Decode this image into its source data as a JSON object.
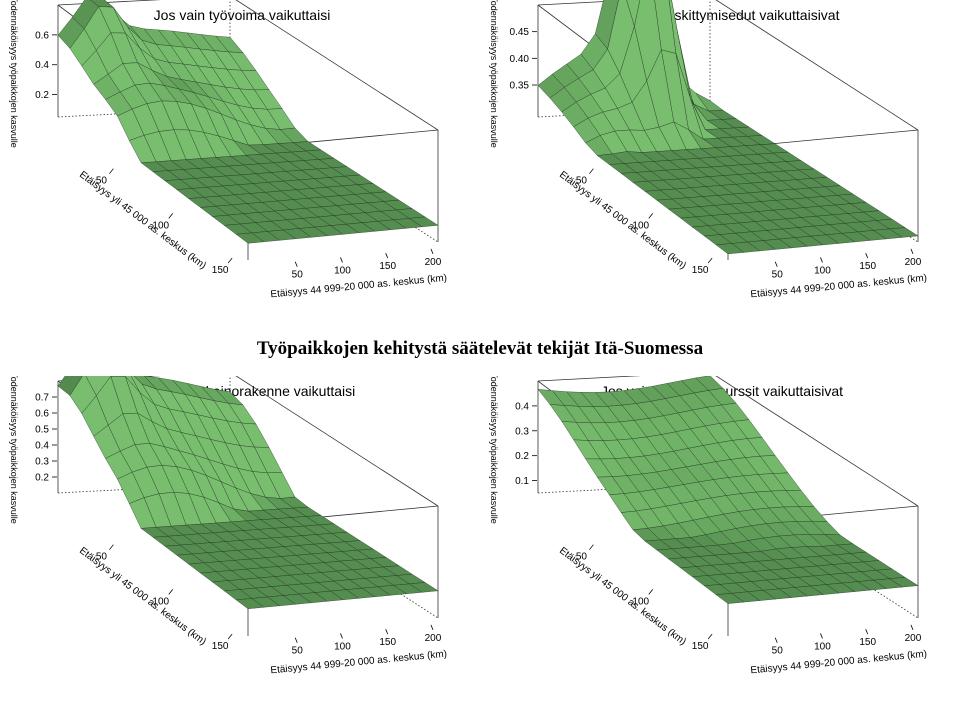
{
  "main_title": "Työpaikkojen kehitystä säätelevät tekijät Itä-Suomessa",
  "chart_data": [
    {
      "type": "surface",
      "title": "Jos vain työvoima vaikuttaisi",
      "zlabel": "Todennäköisyys työpaikkojen kasvulle",
      "xlabel": "Etäisyys yli 45 000 as. keskus (km)",
      "ylabel": "Etäisyys 44 999-20 000 as. keskus (km)",
      "xticks": [
        50,
        100,
        150
      ],
      "yticks": [
        50,
        100,
        150,
        200
      ],
      "zticks": [
        "0.2",
        "0.4",
        "0.6"
      ],
      "xlim": [
        0,
        160
      ],
      "ylim": [
        0,
        210
      ],
      "zlim": [
        0.05,
        0.8
      ],
      "shape": {
        "base": 0.45,
        "decay": 0.75,
        "floor": 0.18,
        "bump": 0.12,
        "ridge": 0.18,
        "ridgeX": 0.32,
        "side": 0.1,
        "peak": 0.1,
        "peakY": 0.2
      }
    },
    {
      "type": "surface",
      "title": "Jos vain keskittymisedut vaikuttaisivat",
      "zlabel": "Todennäköisyys työpaikkojen kasvulle",
      "xlabel": "Etäisyys yli 45 000 as. keskus (km)",
      "ylabel": "Etäisyys 44 999-20 000 as. keskus (km)",
      "xticks": [
        50,
        100,
        150
      ],
      "yticks": [
        50,
        100,
        150,
        200
      ],
      "zticks": [
        "0.35",
        "0.40",
        "0.45"
      ],
      "xlim": [
        0,
        160
      ],
      "ylim": [
        0,
        210
      ],
      "zlim": [
        0.29,
        0.5
      ],
      "shape": {
        "base": 0.34,
        "decay": 0.3,
        "floor": 0.335,
        "bump": 0.01,
        "ridge": 0.0,
        "ridgeX": 0.3,
        "side": 0.12,
        "peak": 0.13,
        "peakY": 0.55
      }
    },
    {
      "type": "surface",
      "title": "Jos vain elinkeinorakenne vaikuttaisi",
      "zlabel": "Todennäköisyys työpaikkojen kasvulle",
      "xlabel": "Etäisyys yli 45 000 as. keskus (km)",
      "ylabel": "Etäisyys 44 999-20 000 as. keskus (km)",
      "xticks": [
        50,
        100,
        150
      ],
      "yticks": [
        50,
        100,
        150,
        200
      ],
      "zticks": [
        "0.2",
        "0.3",
        "0.4",
        "0.5",
        "0.6",
        "0.7"
      ],
      "xlim": [
        0,
        160
      ],
      "ylim": [
        0,
        210
      ],
      "zlim": [
        0.1,
        0.8
      ],
      "shape": {
        "base": 0.5,
        "decay": 0.5,
        "floor": 0.3,
        "bump": 0.25,
        "ridge": 0.15,
        "ridgeX": 0.35,
        "side": 0.15,
        "peak": 0.1,
        "peakY": 0.2
      }
    },
    {
      "type": "surface",
      "title": "Jos vain luonnonresurssit vaikuttaisivat",
      "zlabel": "Todennäköisyys työpaikkojen kasvulle",
      "xlabel": "Etäisyys yli 45 000 as. keskus (km)",
      "ylabel": "Etäisyys 44 999-20 000 as. keskus (km)",
      "xticks": [
        50,
        100,
        150
      ],
      "yticks": [
        50,
        100,
        150,
        200
      ],
      "zticks": [
        "0.1",
        "0.2",
        "0.3",
        "0.4"
      ],
      "xlim": [
        0,
        160
      ],
      "ylim": [
        0,
        210
      ],
      "zlim": [
        0.05,
        0.5
      ],
      "shape": {
        "base": 0.42,
        "decay": 0.35,
        "floor": 0.2,
        "bump": 0.05,
        "ridge": 0.02,
        "ridgeX": 0.4,
        "side": -0.05,
        "peak": 0.0,
        "peakY": 0.3
      }
    }
  ]
}
